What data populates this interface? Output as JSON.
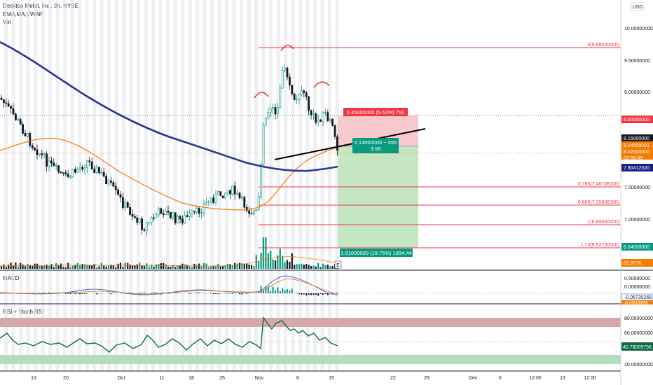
{
  "header": {
    "title": "Desktop Metal, Inc., 3h, NYSE",
    "indicators": "EMA,MA,VWAP",
    "volume": "Vol"
  },
  "currency": "USD",
  "price_axis": [
    "10.00000000",
    "9.50000000",
    "9.00000000",
    "7.50000000",
    "7.00000000"
  ],
  "price_tags": [
    {
      "label": "8.60000000",
      "color": "#f23645"
    },
    {
      "label": "8.15000000",
      "color": "#131722"
    },
    {
      "label": "8.14509091",
      "color": "#f57c00"
    },
    {
      "label": "8.02000000",
      "color": "#f57c00"
    },
    {
      "label": "02:58:49",
      "color": "#f57c00"
    },
    {
      "label": "7.80412500",
      "color": "#1a237e"
    },
    {
      "label": "6.54000000",
      "color": "#089981"
    },
    {
      "label": "83.867K",
      "color": "#f57c00"
    }
  ],
  "fib_levels": [
    {
      "label": "0(9.68000000)"
    },
    {
      "label": "0.786(7.48706000)"
    },
    {
      "label": "0.886(7.20806000)"
    },
    {
      "label": "1(6.89000000)"
    },
    {
      "label": "1.13(6.52730000)"
    }
  ],
  "position": {
    "stop_label": "0.45000000 (5.52%) 750",
    "entry_label_1": "0.13000000 ~ 555",
    "entry_label_2": "3.58",
    "target_label": "1.61000000 (19.75%) 1894.44"
  },
  "macd": {
    "title": "MACD",
    "axis": [
      "0.50000000",
      "0.00000000"
    ],
    "tags": [
      {
        "label": "-0.06735265",
        "color": "#2962ff"
      },
      {
        "label": "-0.09006699",
        "color": "#f57c00"
      }
    ]
  },
  "rsi": {
    "title": "RSI + Stoch RSI",
    "axis": [
      "80.00000000",
      "60.00000000",
      "20.00000000"
    ],
    "tag": "40.78009756"
  },
  "x_axis": [
    "13",
    "20",
    "Oct",
    "11",
    "18",
    "25",
    "Nov",
    "8",
    "15",
    "22",
    "29",
    "Dec",
    "6",
    "12:00",
    "13",
    "12:00"
  ]
}
